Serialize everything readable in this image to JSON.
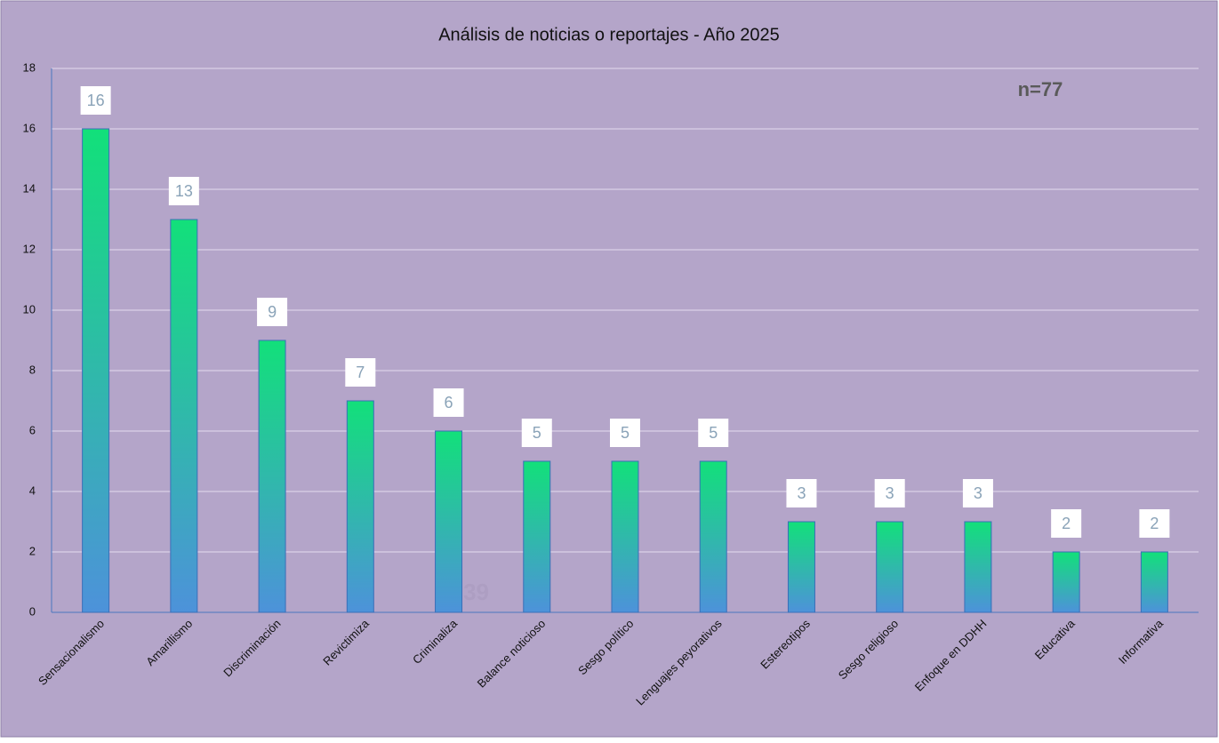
{
  "chart_data": {
    "type": "bar",
    "title": "Análisis de noticias o reportajes - Año 2025",
    "categories": [
      "Sensacionalismo",
      "Amarillismo",
      "Discriminación",
      "Revictimiza",
      "Criminaliza",
      "Balance noticioso",
      "Sesgo político",
      "Lenguajes peyorativos",
      "Estereotipos",
      "Sesgo religioso",
      "Enfoque en DDHH",
      "Educativa",
      "Informativa"
    ],
    "values": [
      16,
      13,
      9,
      7,
      6,
      5,
      5,
      5,
      3,
      3,
      3,
      2,
      2
    ],
    "gradient": [
      "#12e07a",
      "#4d92da"
    ],
    "ylim": [
      0,
      18
    ],
    "yticks": [
      0,
      2,
      4,
      6,
      8,
      10,
      12,
      14,
      16,
      18
    ],
    "grid": true,
    "annotations": [
      "n=77",
      "n=39"
    ]
  }
}
